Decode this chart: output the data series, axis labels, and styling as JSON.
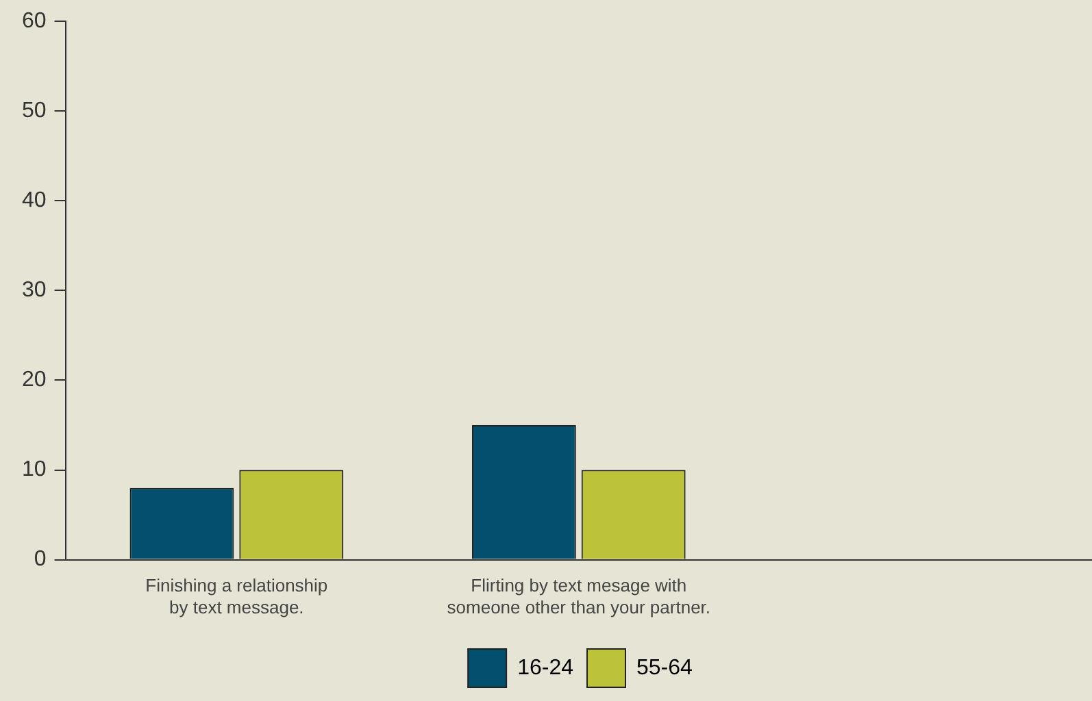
{
  "chart_data": {
    "type": "bar",
    "categories": [
      "Finishing a relationship\nby text message.",
      "Flirting by text mesage with\nsomeone other than your partner.",
      null
    ],
    "series": [
      {
        "name": "16-24",
        "color": "#02506e",
        "values": [
          8,
          15,
          null
        ]
      },
      {
        "name": "55-64",
        "color": "#bdc339",
        "values": [
          10,
          10,
          null
        ]
      }
    ],
    "ylim": [
      0,
      60
    ],
    "yticks": [
      0,
      10,
      20,
      30,
      40,
      50,
      60
    ],
    "grid": false,
    "legend": "bottom"
  }
}
